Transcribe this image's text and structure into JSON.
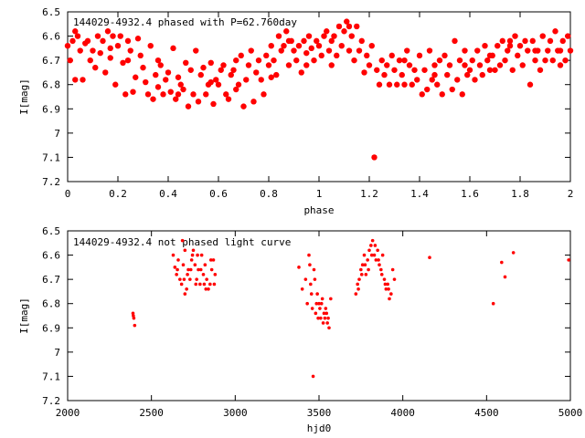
{
  "chart_data": [
    {
      "type": "scatter",
      "title": "144029-4932.4 phased with P=62.760day",
      "xlabel": "phase",
      "ylabel": "I[mag]",
      "xlim": [
        0,
        2
      ],
      "ylim": [
        7.2,
        6.5
      ],
      "y_inverted": true,
      "xticks": [
        "0",
        "0.2",
        "0.4",
        "0.6",
        "0.8",
        "1",
        "1.2",
        "1.4",
        "1.6",
        "1.8",
        "2"
      ],
      "yticks": [
        "6.5",
        "6.6",
        "6.7",
        "6.8",
        "6.9",
        "7",
        "7.1",
        "7.2"
      ],
      "marker_color": "#ff0000",
      "marker": "filled-circle-large",
      "points": [
        [
          0.0,
          6.64
        ],
        [
          0.01,
          6.7
        ],
        [
          0.02,
          6.62
        ],
        [
          0.03,
          6.78
        ],
        [
          0.04,
          6.6
        ],
        [
          0.05,
          6.66
        ],
        [
          0.06,
          6.78
        ],
        [
          0.08,
          6.62
        ],
        [
          0.09,
          6.7
        ],
        [
          0.1,
          6.66
        ],
        [
          0.11,
          6.73
        ],
        [
          0.12,
          6.6
        ],
        [
          0.13,
          6.67
        ],
        [
          0.14,
          6.62
        ],
        [
          0.15,
          6.75
        ],
        [
          0.16,
          6.58
        ],
        [
          0.17,
          6.69
        ],
        [
          0.18,
          6.6
        ],
        [
          0.19,
          6.8
        ],
        [
          0.2,
          6.64
        ],
        [
          0.21,
          6.6
        ],
        [
          0.22,
          6.71
        ],
        [
          0.23,
          6.84
        ],
        [
          0.24,
          6.62
        ],
        [
          0.25,
          6.66
        ],
        [
          0.26,
          6.83
        ],
        [
          0.27,
          6.77
        ],
        [
          0.28,
          6.61
        ],
        [
          0.29,
          6.68
        ],
        [
          0.3,
          6.73
        ],
        [
          0.31,
          6.79
        ],
        [
          0.32,
          6.84
        ],
        [
          0.33,
          6.64
        ],
        [
          0.34,
          6.86
        ],
        [
          0.35,
          6.76
        ],
        [
          0.36,
          6.7
        ],
        [
          0.37,
          6.72
        ],
        [
          0.38,
          6.84
        ],
        [
          0.39,
          6.78
        ],
        [
          0.4,
          6.75
        ],
        [
          0.41,
          6.83
        ],
        [
          0.42,
          6.65
        ],
        [
          0.43,
          6.86
        ],
        [
          0.44,
          6.77
        ],
        [
          0.45,
          6.8
        ],
        [
          0.46,
          6.82
        ],
        [
          0.47,
          6.71
        ],
        [
          0.48,
          6.89
        ],
        [
          0.49,
          6.74
        ],
        [
          0.5,
          6.84
        ],
        [
          0.51,
          6.66
        ],
        [
          0.52,
          6.87
        ],
        [
          0.53,
          6.76
        ],
        [
          0.54,
          6.73
        ],
        [
          0.55,
          6.84
        ],
        [
          0.56,
          6.8
        ],
        [
          0.57,
          6.71
        ],
        [
          0.58,
          6.88
        ],
        [
          0.59,
          6.78
        ],
        [
          0.6,
          6.8
        ],
        [
          0.61,
          6.74
        ],
        [
          0.62,
          6.72
        ],
        [
          0.63,
          6.84
        ],
        [
          0.64,
          6.86
        ],
        [
          0.65,
          6.76
        ],
        [
          0.66,
          6.74
        ],
        [
          0.67,
          6.7
        ],
        [
          0.68,
          6.8
        ],
        [
          0.69,
          6.68
        ],
        [
          0.7,
          6.89
        ],
        [
          0.71,
          6.78
        ],
        [
          0.72,
          6.72
        ],
        [
          0.73,
          6.66
        ],
        [
          0.74,
          6.87
        ],
        [
          0.75,
          6.75
        ],
        [
          0.76,
          6.7
        ],
        [
          0.77,
          6.78
        ],
        [
          0.78,
          6.84
        ],
        [
          0.79,
          6.68
        ],
        [
          0.8,
          6.72
        ],
        [
          0.81,
          6.64
        ],
        [
          0.82,
          6.7
        ],
        [
          0.83,
          6.76
        ],
        [
          0.84,
          6.6
        ],
        [
          0.85,
          6.66
        ],
        [
          0.86,
          6.64
        ],
        [
          0.87,
          6.58
        ],
        [
          0.88,
          6.72
        ],
        [
          0.89,
          6.62
        ],
        [
          0.9,
          6.66
        ],
        [
          0.91,
          6.7
        ],
        [
          0.92,
          6.64
        ],
        [
          0.93,
          6.75
        ],
        [
          0.94,
          6.62
        ],
        [
          0.95,
          6.67
        ],
        [
          0.96,
          6.6
        ],
        [
          0.97,
          6.65
        ],
        [
          0.98,
          6.7
        ],
        [
          0.99,
          6.62
        ],
        [
          1.0,
          6.64
        ],
        [
          1.01,
          6.68
        ],
        [
          1.02,
          6.6
        ],
        [
          1.03,
          6.58
        ],
        [
          1.04,
          6.66
        ],
        [
          1.05,
          6.72
        ],
        [
          1.06,
          6.6
        ],
        [
          1.07,
          6.68
        ],
        [
          1.08,
          6.56
        ],
        [
          1.09,
          6.64
        ],
        [
          1.1,
          6.58
        ],
        [
          1.11,
          6.54
        ],
        [
          1.12,
          6.66
        ],
        [
          1.13,
          6.6
        ],
        [
          1.14,
          6.7
        ],
        [
          1.15,
          6.56
        ],
        [
          1.16,
          6.66
        ],
        [
          1.17,
          6.62
        ],
        [
          1.18,
          6.75
        ],
        [
          1.19,
          6.68
        ],
        [
          1.2,
          6.72
        ],
        [
          1.21,
          6.64
        ],
        [
          1.22,
          7.1
        ],
        [
          1.23,
          6.74
        ],
        [
          1.24,
          6.8
        ],
        [
          1.25,
          6.7
        ],
        [
          1.26,
          6.76
        ],
        [
          1.27,
          6.72
        ],
        [
          1.28,
          6.8
        ],
        [
          1.29,
          6.68
        ],
        [
          1.3,
          6.74
        ],
        [
          1.31,
          6.8
        ],
        [
          1.32,
          6.7
        ],
        [
          1.33,
          6.76
        ],
        [
          1.34,
          6.8
        ],
        [
          1.35,
          6.66
        ],
        [
          1.36,
          6.72
        ],
        [
          1.37,
          6.8
        ],
        [
          1.38,
          6.74
        ],
        [
          1.39,
          6.78
        ],
        [
          1.4,
          6.68
        ],
        [
          1.41,
          6.84
        ],
        [
          1.42,
          6.74
        ],
        [
          1.43,
          6.82
        ],
        [
          1.44,
          6.66
        ],
        [
          1.45,
          6.78
        ],
        [
          1.46,
          6.72
        ],
        [
          1.47,
          6.8
        ],
        [
          1.48,
          6.7
        ],
        [
          1.49,
          6.84
        ],
        [
          1.5,
          6.68
        ],
        [
          1.51,
          6.76
        ],
        [
          1.52,
          6.72
        ],
        [
          1.53,
          6.82
        ],
        [
          1.54,
          6.62
        ],
        [
          1.55,
          6.78
        ],
        [
          1.56,
          6.7
        ],
        [
          1.57,
          6.84
        ],
        [
          1.58,
          6.66
        ],
        [
          1.59,
          6.76
        ],
        [
          1.6,
          6.74
        ],
        [
          1.61,
          6.7
        ],
        [
          1.62,
          6.78
        ],
        [
          1.63,
          6.66
        ],
        [
          1.64,
          6.72
        ],
        [
          1.65,
          6.76
        ],
        [
          1.66,
          6.64
        ],
        [
          1.67,
          6.7
        ],
        [
          1.68,
          6.74
        ],
        [
          1.69,
          6.68
        ],
        [
          1.7,
          6.74
        ],
        [
          1.71,
          6.64
        ],
        [
          1.72,
          6.72
        ],
        [
          1.73,
          6.62
        ],
        [
          1.74,
          6.7
        ],
        [
          1.75,
          6.66
        ],
        [
          1.76,
          6.64
        ],
        [
          1.77,
          6.74
        ],
        [
          1.78,
          6.6
        ],
        [
          1.79,
          6.68
        ],
        [
          1.8,
          6.64
        ],
        [
          1.81,
          6.72
        ],
        [
          1.82,
          6.62
        ],
        [
          1.83,
          6.66
        ],
        [
          1.84,
          6.8
        ],
        [
          1.85,
          6.62
        ],
        [
          1.86,
          6.7
        ],
        [
          1.87,
          6.66
        ],
        [
          1.88,
          6.74
        ],
        [
          1.89,
          6.6
        ],
        [
          1.9,
          6.7
        ],
        [
          1.91,
          6.66
        ],
        [
          1.92,
          6.62
        ],
        [
          1.93,
          6.7
        ],
        [
          1.94,
          6.58
        ],
        [
          1.95,
          6.66
        ],
        [
          1.96,
          6.72
        ],
        [
          1.97,
          6.62
        ],
        [
          1.98,
          6.7
        ],
        [
          1.99,
          6.6
        ],
        [
          2.0,
          6.66
        ],
        [
          0.03,
          6.58
        ],
        [
          0.07,
          6.63
        ],
        [
          0.17,
          6.65
        ],
        [
          0.24,
          6.7
        ],
        [
          0.36,
          6.81
        ],
        [
          0.44,
          6.84
        ],
        [
          0.57,
          6.79
        ],
        [
          0.67,
          6.82
        ],
        [
          0.81,
          6.77
        ],
        [
          0.88,
          6.62
        ],
        [
          0.95,
          6.72
        ],
        [
          1.05,
          6.62
        ],
        [
          1.12,
          6.56
        ],
        [
          1.34,
          6.7
        ],
        [
          1.46,
          6.76
        ],
        [
          1.58,
          6.72
        ],
        [
          1.68,
          6.68
        ],
        [
          1.76,
          6.62
        ],
        [
          1.86,
          6.66
        ],
        [
          1.96,
          6.66
        ]
      ]
    },
    {
      "type": "scatter",
      "title": "144029-4932.4 not phased light curve",
      "xlabel": "hjd0",
      "ylabel": "I[mag]",
      "xlim": [
        2000,
        5000
      ],
      "ylim": [
        7.2,
        6.5
      ],
      "y_inverted": true,
      "xticks": [
        "2000",
        "2500",
        "3000",
        "3500",
        "4000",
        "4500",
        "5000"
      ],
      "yticks": [
        "6.5",
        "6.6",
        "6.7",
        "6.8",
        "6.9",
        "7",
        "7.1",
        "7.2"
      ],
      "marker_color": "#ff0000",
      "marker": "filled-circle-small",
      "points": [
        [
          2390,
          6.84
        ],
        [
          2395,
          6.86
        ],
        [
          2400,
          6.89
        ],
        [
          2392,
          6.85
        ],
        [
          2630,
          6.6
        ],
        [
          2640,
          6.65
        ],
        [
          2650,
          6.68
        ],
        [
          2660,
          6.62
        ],
        [
          2670,
          6.7
        ],
        [
          2680,
          6.72
        ],
        [
          2690,
          6.64
        ],
        [
          2700,
          6.76
        ],
        [
          2710,
          6.74
        ],
        [
          2720,
          6.66
        ],
        [
          2730,
          6.7
        ],
        [
          2740,
          6.62
        ],
        [
          2750,
          6.58
        ],
        [
          2760,
          6.64
        ],
        [
          2770,
          6.7
        ],
        [
          2780,
          6.66
        ],
        [
          2790,
          6.72
        ],
        [
          2800,
          6.6
        ],
        [
          2810,
          6.68
        ],
        [
          2820,
          6.64
        ],
        [
          2830,
          6.7
        ],
        [
          2840,
          6.74
        ],
        [
          2850,
          6.72
        ],
        [
          2860,
          6.66
        ],
        [
          2870,
          6.62
        ],
        [
          2880,
          6.68
        ],
        [
          2685,
          6.54
        ],
        [
          2700,
          6.58
        ],
        [
          2715,
          6.68
        ],
        [
          2745,
          6.6
        ],
        [
          2765,
          6.72
        ],
        [
          2795,
          6.66
        ],
        [
          2825,
          6.74
        ],
        [
          2855,
          6.62
        ],
        [
          2875,
          6.72
        ],
        [
          2655,
          6.66
        ],
        [
          2695,
          6.7
        ],
        [
          2735,
          6.66
        ],
        [
          2775,
          6.6
        ],
        [
          2815,
          6.72
        ],
        [
          3380,
          6.65
        ],
        [
          3400,
          6.74
        ],
        [
          3420,
          6.7
        ],
        [
          3430,
          6.8
        ],
        [
          3440,
          6.6
        ],
        [
          3450,
          6.72
        ],
        [
          3460,
          6.82
        ],
        [
          3470,
          6.66
        ],
        [
          3480,
          6.84
        ],
        [
          3490,
          6.76
        ],
        [
          3500,
          6.8
        ],
        [
          3510,
          6.86
        ],
        [
          3520,
          6.78
        ],
        [
          3530,
          6.84
        ],
        [
          3540,
          6.82
        ],
        [
          3550,
          6.88
        ],
        [
          3560,
          6.9
        ],
        [
          3570,
          6.78
        ],
        [
          3465,
          7.1
        ],
        [
          3445,
          6.64
        ],
        [
          3455,
          6.76
        ],
        [
          3475,
          6.7
        ],
        [
          3485,
          6.8
        ],
        [
          3495,
          6.86
        ],
        [
          3505,
          6.82
        ],
        [
          3515,
          6.8
        ],
        [
          3525,
          6.88
        ],
        [
          3535,
          6.86
        ],
        [
          3545,
          6.84
        ],
        [
          3555,
          6.86
        ],
        [
          3720,
          6.76
        ],
        [
          3730,
          6.72
        ],
        [
          3740,
          6.7
        ],
        [
          3750,
          6.66
        ],
        [
          3760,
          6.64
        ],
        [
          3770,
          6.6
        ],
        [
          3780,
          6.68
        ],
        [
          3790,
          6.62
        ],
        [
          3800,
          6.58
        ],
        [
          3810,
          6.56
        ],
        [
          3820,
          6.54
        ],
        [
          3830,
          6.6
        ],
        [
          3840,
          6.62
        ],
        [
          3850,
          6.58
        ],
        [
          3860,
          6.64
        ],
        [
          3870,
          6.66
        ],
        [
          3880,
          6.6
        ],
        [
          3890,
          6.7
        ],
        [
          3900,
          6.74
        ],
        [
          3910,
          6.72
        ],
        [
          3920,
          6.78
        ],
        [
          3930,
          6.76
        ],
        [
          3940,
          6.66
        ],
        [
          3950,
          6.7
        ],
        [
          3735,
          6.74
        ],
        [
          3755,
          6.68
        ],
        [
          3775,
          6.64
        ],
        [
          3795,
          6.66
        ],
        [
          3815,
          6.6
        ],
        [
          3835,
          6.56
        ],
        [
          3855,
          6.62
        ],
        [
          3875,
          6.68
        ],
        [
          3895,
          6.72
        ],
        [
          3915,
          6.74
        ],
        [
          4160,
          6.61
        ],
        [
          4540,
          6.8
        ],
        [
          4590,
          6.63
        ],
        [
          4610,
          6.69
        ],
        [
          4660,
          6.59
        ],
        [
          4990,
          6.62
        ]
      ]
    }
  ]
}
